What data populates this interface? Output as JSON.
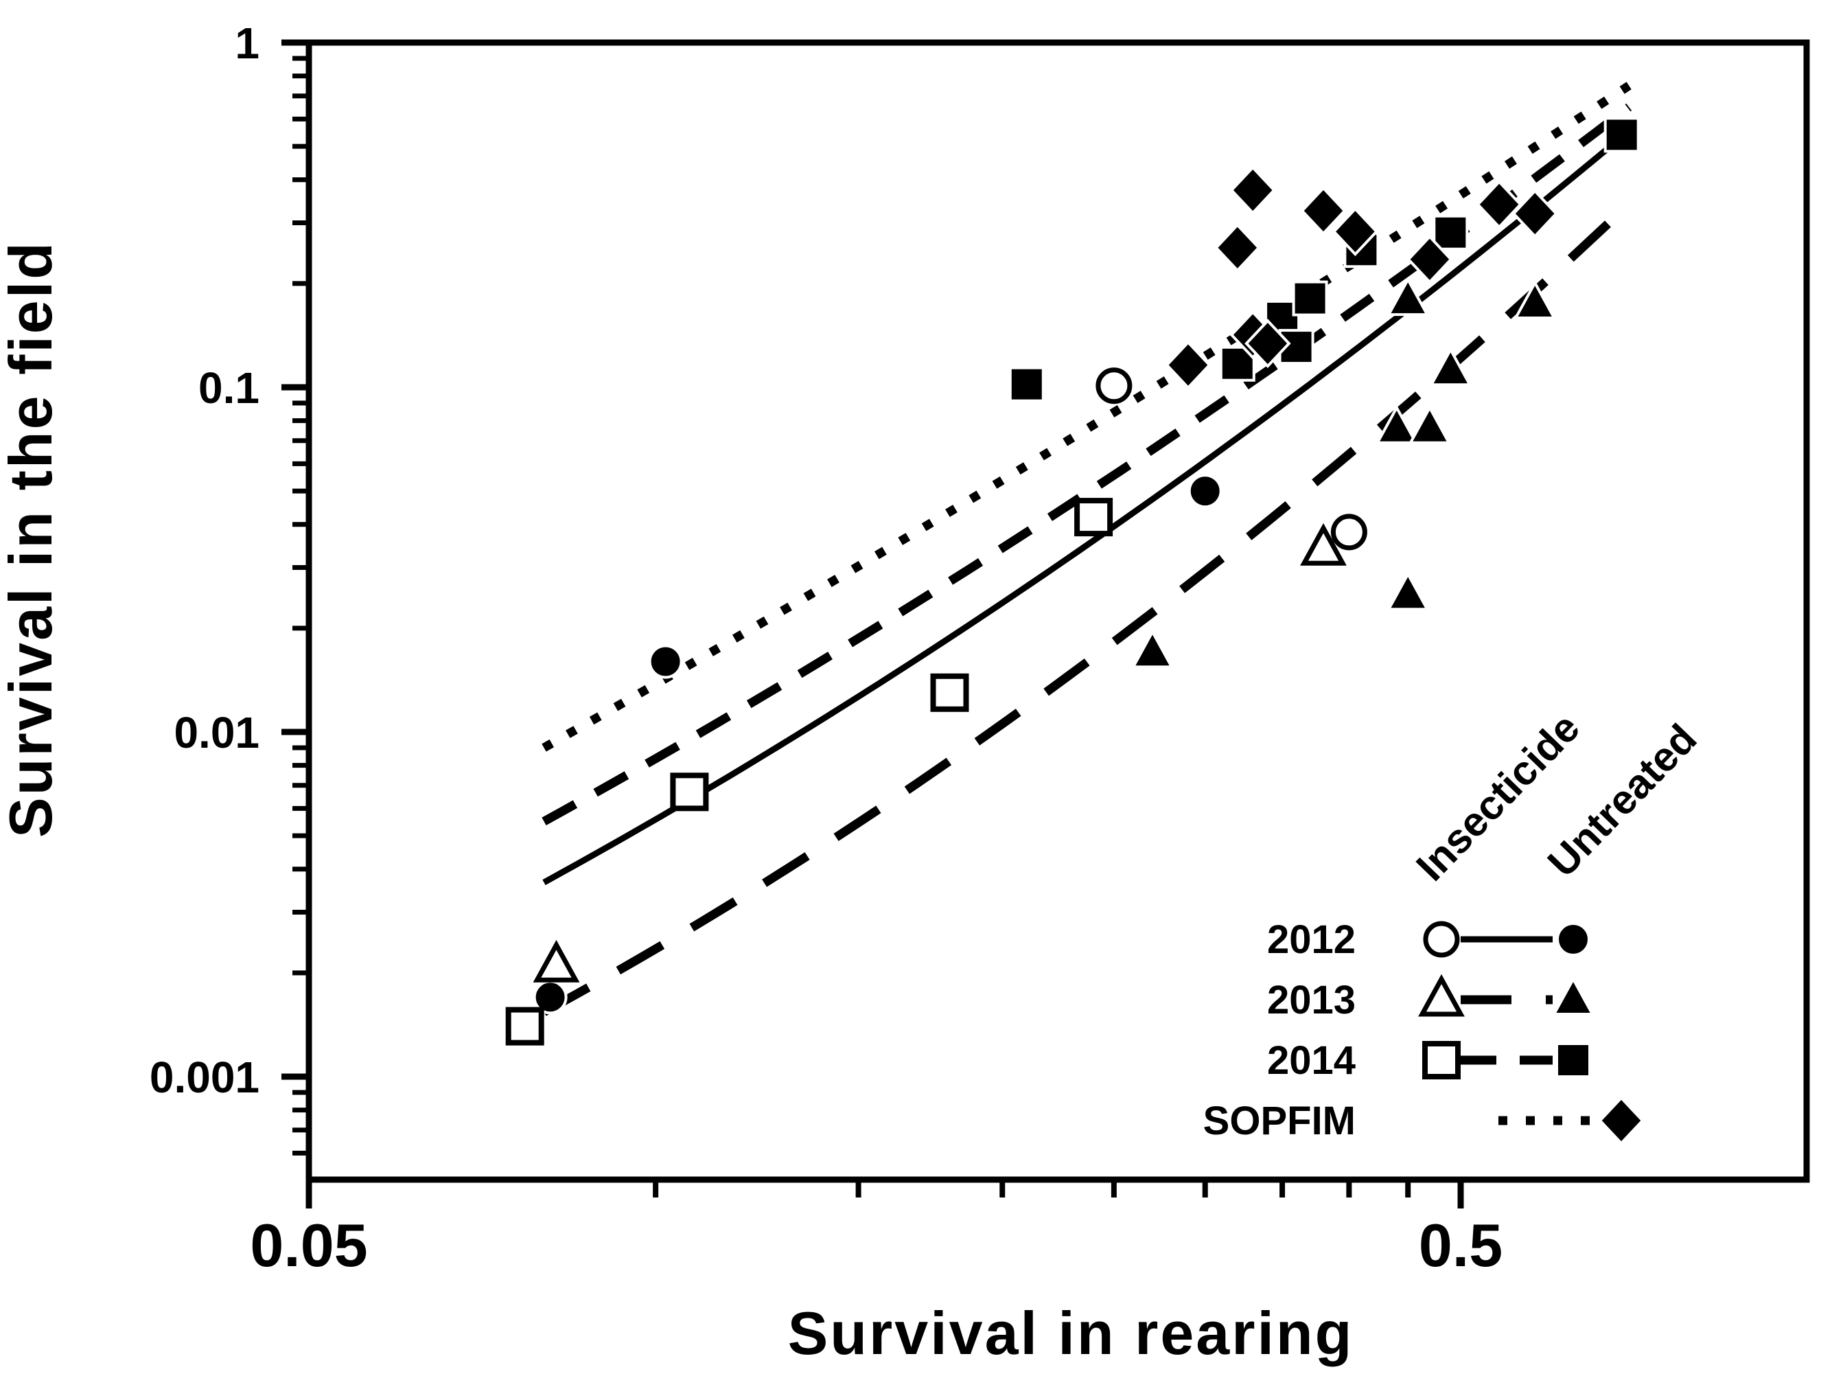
{
  "figure": {
    "background_color": "#ffffff",
    "ink_color": "#000000"
  },
  "chart_data": {
    "type": "scatter",
    "title": "",
    "xlabel": "Survival in rearing",
    "ylabel": "Survival in the field",
    "x_axis": {
      "scale": "log",
      "min": 0.05,
      "max": 1.0,
      "major_ticks": [
        {
          "value": 0.05,
          "label": "0.05"
        },
        {
          "value": 0.5,
          "label": "0.5"
        }
      ],
      "minor_ticks": [
        0.1,
        0.15,
        0.2,
        0.25,
        0.3,
        0.35,
        0.4,
        0.45
      ]
    },
    "y_axis": {
      "scale": "log",
      "min": 0.0005,
      "max": 1.0,
      "major_ticks": [
        {
          "value": 1,
          "label": "1"
        },
        {
          "value": 0.1,
          "label": "0.1"
        },
        {
          "value": 0.01,
          "label": "0.01"
        },
        {
          "value": 0.001,
          "label": "0.001"
        }
      ],
      "minor_tick_decades": [
        1,
        0.1,
        0.01,
        0.001
      ],
      "minor_tick_factors": [
        0.9,
        0.8,
        0.7,
        0.6,
        0.5,
        0.4,
        0.3,
        0.2
      ]
    },
    "groups": [
      {
        "name": "2012",
        "marker": "circle",
        "line_style": "solid",
        "insecticide_points": [
          [
            0.25,
            0.101
          ],
          [
            0.4,
            0.038
          ]
        ],
        "untreated_points": [
          [
            0.081,
            0.0017
          ],
          [
            0.102,
            0.016
          ],
          [
            0.3,
            0.05
          ]
        ],
        "curve": {
          "a": 0.1891,
          "b": 2.9516,
          "c": 0.5086,
          "x_start": 0.08,
          "x_end": 0.678
        }
      },
      {
        "name": "2013",
        "marker": "triangle",
        "line_style": "long-dash",
        "insecticide_points": [
          [
            0.082,
            0.0021
          ],
          [
            0.38,
            0.034
          ]
        ],
        "untreated_points": [
          [
            0.27,
            0.017
          ],
          [
            0.44,
            0.076
          ],
          [
            0.45,
            0.025
          ],
          [
            0.45,
            0.179
          ],
          [
            0.47,
            0.076
          ],
          [
            0.49,
            0.112
          ],
          [
            0.58,
            0.175
          ]
        ],
        "curve": {
          "a": 0.0385,
          "b": 3.381,
          "c": 0.7128,
          "x_start": 0.08,
          "x_end": 0.695
        }
      },
      {
        "name": "2014",
        "marker": "square",
        "line_style": "dash",
        "insecticide_points": [
          [
            0.077,
            0.0014
          ],
          [
            0.107,
            0.0067
          ],
          [
            0.18,
            0.013
          ],
          [
            0.24,
            0.042
          ]
        ],
        "untreated_points": [
          [
            0.21,
            0.102
          ],
          [
            0.32,
            0.117
          ],
          [
            0.35,
            0.159
          ],
          [
            0.36,
            0.131
          ],
          [
            0.37,
            0.181
          ],
          [
            0.41,
            0.25
          ],
          [
            0.49,
            0.281
          ],
          [
            0.69,
            0.54
          ]
        ],
        "curve": {
          "a": 0.2183,
          "b": 2.6759,
          "c": 0.3801,
          "x_start": 0.08,
          "x_end": 0.7
        }
      },
      {
        "name": "SOPFIM",
        "marker": "diamond",
        "line_style": "dotted",
        "insecticide_points": [],
        "untreated_points": [
          [
            0.29,
            0.116
          ],
          [
            0.32,
            0.254
          ],
          [
            0.33,
            0.142
          ],
          [
            0.33,
            0.373
          ],
          [
            0.34,
            0.134
          ],
          [
            0.38,
            0.325
          ],
          [
            0.405,
            0.283
          ],
          [
            0.47,
            0.235
          ],
          [
            0.54,
            0.339
          ],
          [
            0.58,
            0.319
          ]
        ],
        "curve": {
          "a": 0.2188,
          "b": 2.2437,
          "c": 0.1634,
          "x_start": 0.08,
          "x_end": 0.7
        }
      }
    ],
    "legend_position": "inside-bottom-right",
    "grid": false
  },
  "legend": {
    "column_headers": [
      "Insecticide",
      "Untreated"
    ],
    "rows": [
      {
        "label": "2012",
        "line_style": "solid",
        "marker": "circle",
        "has_open": true
      },
      {
        "label": "2013",
        "line_style": "long-dash",
        "marker": "triangle",
        "has_open": true
      },
      {
        "label": "2014",
        "line_style": "dash",
        "marker": "square",
        "has_open": true
      },
      {
        "label": "SOPFIM",
        "line_style": "dotted",
        "marker": "diamond",
        "has_open": false
      }
    ]
  }
}
